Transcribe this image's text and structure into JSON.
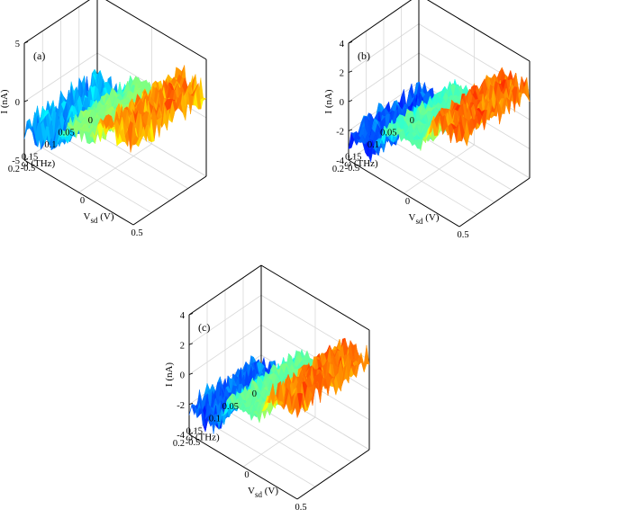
{
  "chart_data": [
    {
      "type": "surface",
      "panel_label": "(a)",
      "xlabel": "V_sd (V)",
      "ylabel": "ω (THz)",
      "zlabel": "I (nA)",
      "x_ticks": [
        "-0.5",
        "0",
        "0.5"
      ],
      "y_ticks": [
        "0",
        "0.05",
        "0.1",
        "0.15",
        "0.2"
      ],
      "z_ticks": [
        "-5",
        "0",
        "5"
      ],
      "xlim": [
        -0.5,
        0.5
      ],
      "ylim": [
        0,
        0.2
      ],
      "zlim": [
        -5,
        5
      ],
      "colormap": "jet",
      "step": {
        "low": -2.2,
        "mid": 0.0,
        "high": 2.2,
        "edges": [
          -0.18,
          0.18
        ]
      },
      "noise": 1.3,
      "seed": 11,
      "box": {
        "bfl": [
          27,
          178
        ],
        "bfr": [
          148,
          250
        ],
        "bbl": [
          108,
          124
        ],
        "bbr": [
          305,
          200
        ],
        "tfl": [
          27,
          48
        ],
        "tbl": [
          108,
          0
        ],
        "tbr": [
          305,
          80
        ]
      }
    },
    {
      "type": "surface",
      "panel_label": "(b)",
      "xlabel": "V_sd (V)",
      "ylabel": "ω (THz)",
      "zlabel": "I (nA)",
      "x_ticks": [
        "-0.5",
        "0",
        "0.5"
      ],
      "y_ticks": [
        "0",
        "0.05",
        "0.1",
        "0.15",
        "0.2"
      ],
      "z_ticks": [
        "-4",
        "-2",
        "0",
        "2",
        "4"
      ],
      "xlim": [
        -0.5,
        0.5
      ],
      "ylim": [
        0,
        0.2
      ],
      "zlim": [
        -4,
        4
      ],
      "colormap": "jet",
      "step": {
        "low": -2.4,
        "mid": -0.4,
        "high": 2.0,
        "edges": [
          -0.22,
          0.18
        ]
      },
      "noise": 0.9,
      "seed": 23,
      "box": {
        "bfl": [
          387,
          178
        ],
        "bfr": [
          510,
          252
        ],
        "bbl": [
          465,
          124
        ],
        "bbr": [
          665,
          200
        ],
        "tfl": [
          387,
          48
        ],
        "tbl": [
          465,
          0
        ],
        "tbr": [
          665,
          80
        ]
      }
    },
    {
      "type": "surface",
      "panel_label": "(c)",
      "xlabel": "V_sd (V)",
      "ylabel": "ω (THz)",
      "zlabel": "I (nA)",
      "x_ticks": [
        "-0.5",
        "0",
        "0.5"
      ],
      "y_ticks": [
        "0",
        "0.05",
        "0.1",
        "0.15",
        "0.2"
      ],
      "z_ticks": [
        "-4",
        "-2",
        "0",
        "2",
        "4"
      ],
      "xlim": [
        -0.5,
        0.5
      ],
      "ylim": [
        0,
        0.2
      ],
      "zlim": [
        -4,
        4
      ],
      "colormap": "jet",
      "step": {
        "low": -2.3,
        "mid": -0.2,
        "high": 2.0,
        "edges": [
          -0.2,
          0.2
        ]
      },
      "noise": 0.9,
      "seed": 37,
      "box": {
        "bfl": [
          210,
          483
        ],
        "bfr": [
          330,
          555
        ],
        "bbl": [
          290,
          428
        ],
        "bbr": [
          485,
          503
        ],
        "tfl": [
          210,
          350
        ],
        "tbl": [
          290,
          305
        ],
        "tbr": [
          485,
          385
        ]
      }
    }
  ]
}
